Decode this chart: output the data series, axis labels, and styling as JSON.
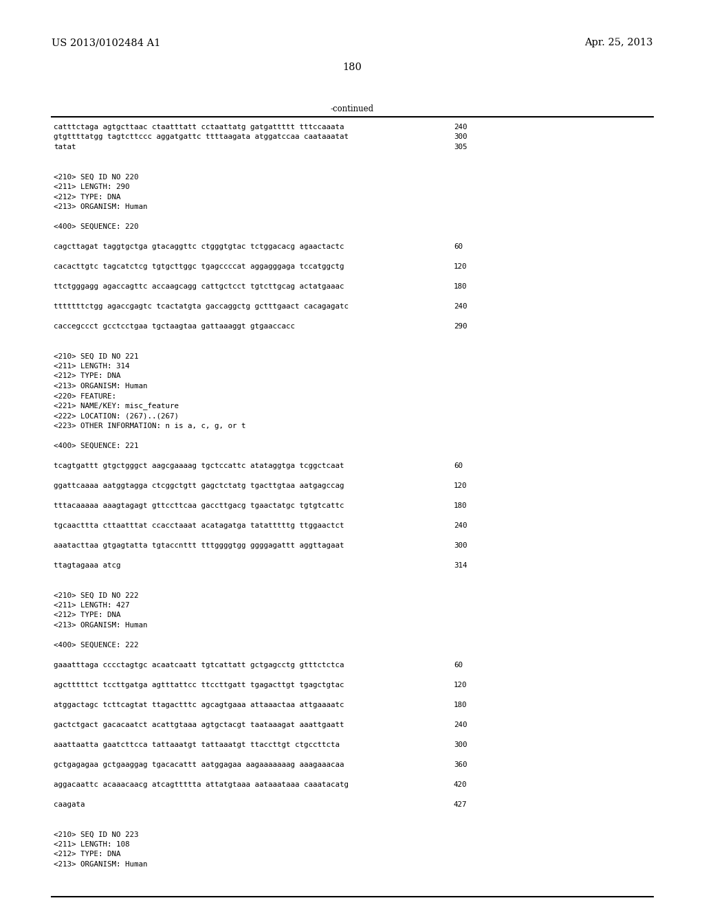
{
  "background_color": "#ffffff",
  "header_left": "US 2013/0102484 A1",
  "header_right": "Apr. 25, 2013",
  "page_number": "180",
  "continued_label": "-continued",
  "font_size_header": 10.5,
  "font_size_body": 8.5,
  "font_mono_size": 7.8,
  "lines": [
    {
      "text": "catttctaga agtgcttaac ctaatttatt cctaattatg gatgattttt tttccaaata",
      "num": "240",
      "type": "seq"
    },
    {
      "text": "gtgttttatgg tagtcttccc aggatgattc ttttaagata atggatccaa caataaatat",
      "num": "300",
      "type": "seq"
    },
    {
      "text": "tatat",
      "num": "305",
      "type": "seq"
    },
    {
      "text": "",
      "type": "blank"
    },
    {
      "text": "",
      "type": "blank"
    },
    {
      "text": "<210> SEQ ID NO 220",
      "type": "meta"
    },
    {
      "text": "<211> LENGTH: 290",
      "type": "meta"
    },
    {
      "text": "<212> TYPE: DNA",
      "type": "meta"
    },
    {
      "text": "<213> ORGANISM: Human",
      "type": "meta"
    },
    {
      "text": "",
      "type": "blank"
    },
    {
      "text": "<400> SEQUENCE: 220",
      "type": "meta"
    },
    {
      "text": "",
      "type": "blank"
    },
    {
      "text": "cagcttagat taggtgctga gtacaggttc ctgggtgtac tctggacacg agaactactc",
      "num": "60",
      "type": "seq"
    },
    {
      "text": "",
      "type": "blank"
    },
    {
      "text": "cacacttgtc tagcatctcg tgtgcttggc tgagccccat aggagggaga tccatggctg",
      "num": "120",
      "type": "seq"
    },
    {
      "text": "",
      "type": "blank"
    },
    {
      "text": "ttctgggagg agaccagttc accaagcagg cattgctcct tgtcttgcag actatgaaac",
      "num": "180",
      "type": "seq"
    },
    {
      "text": "",
      "type": "blank"
    },
    {
      "text": "tttttttctgg agaccgagtc tcactatgta gaccaggctg gctttgaact cacagagatc",
      "num": "240",
      "type": "seq"
    },
    {
      "text": "",
      "type": "blank"
    },
    {
      "text": "caccegccct gcctcctgaa tgctaagtaa gattaaaggt gtgaaccacc",
      "num": "290",
      "type": "seq"
    },
    {
      "text": "",
      "type": "blank"
    },
    {
      "text": "",
      "type": "blank"
    },
    {
      "text": "<210> SEQ ID NO 221",
      "type": "meta"
    },
    {
      "text": "<211> LENGTH: 314",
      "type": "meta"
    },
    {
      "text": "<212> TYPE: DNA",
      "type": "meta"
    },
    {
      "text": "<213> ORGANISM: Human",
      "type": "meta"
    },
    {
      "text": "<220> FEATURE:",
      "type": "meta"
    },
    {
      "text": "<221> NAME/KEY: misc_feature",
      "type": "meta"
    },
    {
      "text": "<222> LOCATION: (267)..(267)",
      "type": "meta"
    },
    {
      "text": "<223> OTHER INFORMATION: n is a, c, g, or t",
      "type": "meta"
    },
    {
      "text": "",
      "type": "blank"
    },
    {
      "text": "<400> SEQUENCE: 221",
      "type": "meta"
    },
    {
      "text": "",
      "type": "blank"
    },
    {
      "text": "tcagtgattt gtgctgggct aagcgaaaag tgctccattc atataggtga tcggctcaat",
      "num": "60",
      "type": "seq"
    },
    {
      "text": "",
      "type": "blank"
    },
    {
      "text": "ggattcaaaa aatggtagga ctcggctgtt gagctctatg tgacttgtaa aatgagccag",
      "num": "120",
      "type": "seq"
    },
    {
      "text": "",
      "type": "blank"
    },
    {
      "text": "tttacaaaaa aaagtagagt gttccttcaa gaccttgacg tgaactatgc tgtgtcattc",
      "num": "180",
      "type": "seq"
    },
    {
      "text": "",
      "type": "blank"
    },
    {
      "text": "tgcaacttta cttaatttat ccacctaaat acatagatga tatatttttg ttggaactct",
      "num": "240",
      "type": "seq"
    },
    {
      "text": "",
      "type": "blank"
    },
    {
      "text": "aaatacttaa gtgagtatta tgtaccnttt tttggggtgg ggggagattt aggttagaat",
      "num": "300",
      "type": "seq"
    },
    {
      "text": "",
      "type": "blank"
    },
    {
      "text": "ttagtagaaa atcg",
      "num": "314",
      "type": "seq"
    },
    {
      "text": "",
      "type": "blank"
    },
    {
      "text": "",
      "type": "blank"
    },
    {
      "text": "<210> SEQ ID NO 222",
      "type": "meta"
    },
    {
      "text": "<211> LENGTH: 427",
      "type": "meta"
    },
    {
      "text": "<212> TYPE: DNA",
      "type": "meta"
    },
    {
      "text": "<213> ORGANISM: Human",
      "type": "meta"
    },
    {
      "text": "",
      "type": "blank"
    },
    {
      "text": "<400> SEQUENCE: 222",
      "type": "meta"
    },
    {
      "text": "",
      "type": "blank"
    },
    {
      "text": "gaaatttaga cccctagtgc acaatcaatt tgtcattatt gctgagcctg gtttctctca",
      "num": "60",
      "type": "seq"
    },
    {
      "text": "",
      "type": "blank"
    },
    {
      "text": "agctttttct tccttgatga agtttattcc ttccttgatt tgagacttgt tgagctgtac",
      "num": "120",
      "type": "seq"
    },
    {
      "text": "",
      "type": "blank"
    },
    {
      "text": "atggactagc tcttcagtat ttagactttc agcagtgaaa attaaactaa attgaaaatc",
      "num": "180",
      "type": "seq"
    },
    {
      "text": "",
      "type": "blank"
    },
    {
      "text": "gactctgact gacacaatct acattgtaaa agtgctacgt taataaagat aaattgaatt",
      "num": "240",
      "type": "seq"
    },
    {
      "text": "",
      "type": "blank"
    },
    {
      "text": "aaattaatta gaatcttcca tattaaatgt tattaaatgt ttaccttgt ctgccttcta",
      "num": "300",
      "type": "seq"
    },
    {
      "text": "",
      "type": "blank"
    },
    {
      "text": "gctgagagaa gctgaaggag tgacacattt aatggagaa aagaaaaaaag aaagaaacaa",
      "num": "360",
      "type": "seq"
    },
    {
      "text": "",
      "type": "blank"
    },
    {
      "text": "aggacaattc acaaacaacg atcagttttta attatgtaaa aataaataaa caaatacatg",
      "num": "420",
      "type": "seq"
    },
    {
      "text": "",
      "type": "blank"
    },
    {
      "text": "caagata",
      "num": "427",
      "type": "seq"
    },
    {
      "text": "",
      "type": "blank"
    },
    {
      "text": "",
      "type": "blank"
    },
    {
      "text": "<210> SEQ ID NO 223",
      "type": "meta"
    },
    {
      "text": "<211> LENGTH: 108",
      "type": "meta"
    },
    {
      "text": "<212> TYPE: DNA",
      "type": "meta"
    },
    {
      "text": "<213> ORGANISM: Human",
      "type": "meta"
    }
  ]
}
